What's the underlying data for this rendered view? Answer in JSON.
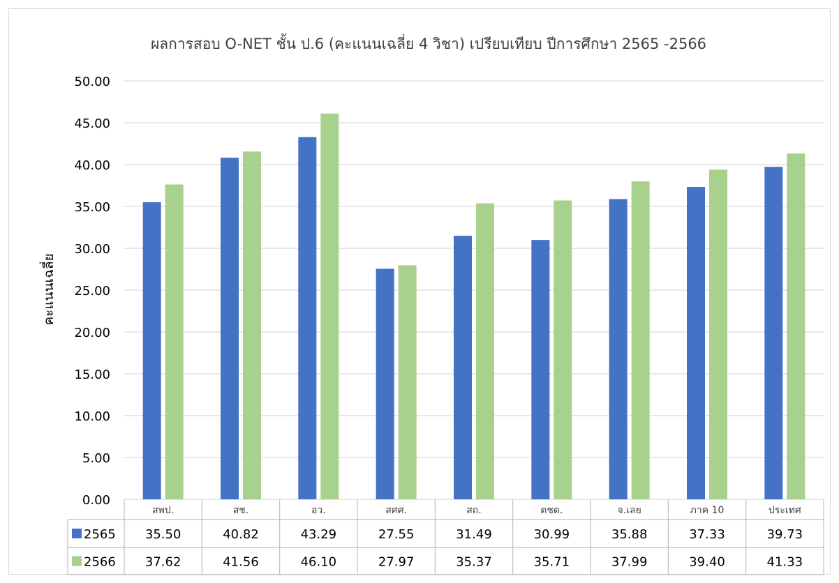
{
  "chart_data": {
    "type": "bar",
    "title": "ผลการสอบ O-NET ชั้น ป.6 (คะแนนเฉลี่ย 4 วิชา) เปรียบเทียบ ปีการศึกษา 2565 -2566",
    "ylabel": "คะแนนเฉลี่ย",
    "xlabel": "",
    "ylim": [
      0,
      50
    ],
    "yticks": [
      "0.00",
      "5.00",
      "10.00",
      "15.00",
      "20.00",
      "25.00",
      "30.00",
      "35.00",
      "40.00",
      "45.00",
      "50.00"
    ],
    "grid": true,
    "legend": "data-table",
    "categories": [
      "สพป.",
      "สช.",
      "อว.",
      "สศศ.",
      "สถ.",
      "ตชด.",
      "จ.เลย",
      "ภาค 10",
      "ประเทศ"
    ],
    "series": [
      {
        "name": "2565",
        "color": "#4472c4",
        "values": [
          35.5,
          40.82,
          43.29,
          27.55,
          31.49,
          30.99,
          35.88,
          37.33,
          39.73
        ],
        "labels": [
          "35.50",
          "40.82",
          "43.29",
          "27.55",
          "31.49",
          "30.99",
          "35.88",
          "37.33",
          "39.73"
        ]
      },
      {
        "name": "2566",
        "color": "#a9d18e",
        "values": [
          37.62,
          41.56,
          46.1,
          27.97,
          35.37,
          35.71,
          37.99,
          39.4,
          41.33
        ],
        "labels": [
          "37.62",
          "41.56",
          "46.10",
          "27.97",
          "35.37",
          "35.71",
          "37.99",
          "39.40",
          "41.33"
        ]
      }
    ]
  }
}
